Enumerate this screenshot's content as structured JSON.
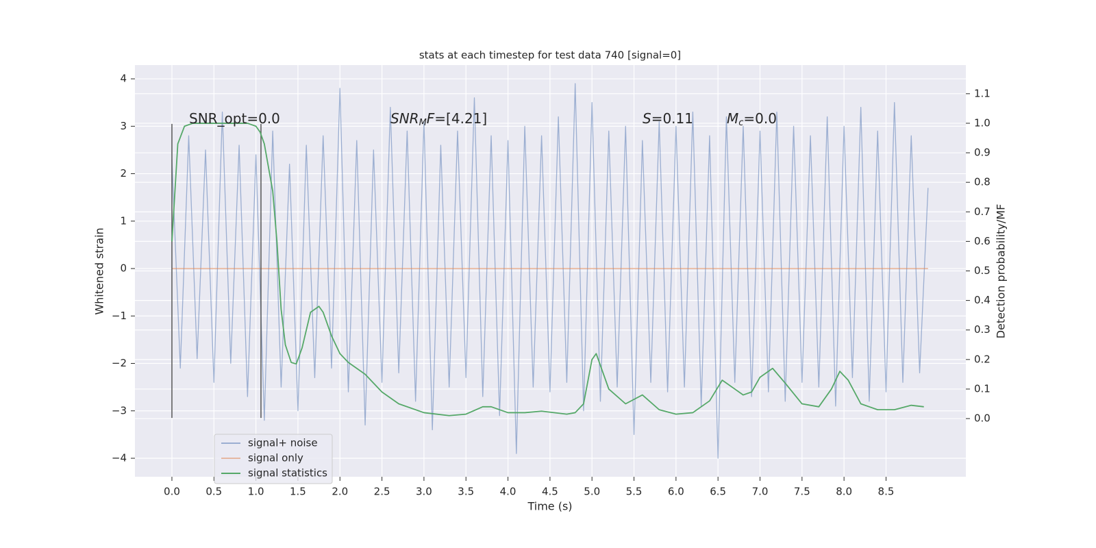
{
  "chart_data": {
    "type": "line",
    "title": "stats at each timestep for test data 740 [signal=0]",
    "xlabel": "Time (s)",
    "ylabel": "Whitened strain",
    "y2label": "Detection probability/MF",
    "xlim": [
      -0.44,
      9.45
    ],
    "ylim": [
      -4.39,
      4.29
    ],
    "y2lim": [
      -0.197,
      1.197
    ],
    "xticks": [
      {
        "value": 0,
        "label": "0.0"
      },
      {
        "value": 0.5,
        "label": "0.5"
      },
      {
        "value": 1,
        "label": "1.0"
      },
      {
        "value": 1.5,
        "label": "1.5"
      },
      {
        "value": 2,
        "label": "2.0"
      },
      {
        "value": 2.5,
        "label": "2.5"
      },
      {
        "value": 3,
        "label": "3.0"
      },
      {
        "value": 3.5,
        "label": "3.5"
      },
      {
        "value": 4,
        "label": "4.0"
      },
      {
        "value": 4.5,
        "label": "4.5"
      },
      {
        "value": 5,
        "label": "5.0"
      },
      {
        "value": 5.5,
        "label": "5.5"
      },
      {
        "value": 6,
        "label": "6.0"
      },
      {
        "value": 6.5,
        "label": "6.5"
      },
      {
        "value": 7,
        "label": "7.0"
      },
      {
        "value": 7.5,
        "label": "7.5"
      },
      {
        "value": 8,
        "label": "8.0"
      },
      {
        "value": 8.5,
        "label": "8.5"
      }
    ],
    "yticks": [
      {
        "value": -4,
        "label": "−4"
      },
      {
        "value": -3,
        "label": "−3"
      },
      {
        "value": -2,
        "label": "−2"
      },
      {
        "value": -1,
        "label": "−1"
      },
      0,
      1,
      2,
      3,
      4
    ],
    "y2ticks": [
      {
        "value": 0,
        "label": "0.0"
      },
      {
        "value": 0.1,
        "label": "0.1"
      },
      {
        "value": 0.2,
        "label": "0.2"
      },
      {
        "value": 0.3,
        "label": "0.3"
      },
      {
        "value": 0.4,
        "label": "0.4"
      },
      {
        "value": 0.5,
        "label": "0.5"
      },
      {
        "value": 0.6,
        "label": "0.6"
      },
      {
        "value": 0.7,
        "label": "0.7"
      },
      {
        "value": 0.8,
        "label": "0.8"
      },
      {
        "value": 0.9,
        "label": "0.9"
      },
      {
        "value": 1,
        "label": "1.0"
      },
      {
        "value": 1.1,
        "label": "1.1"
      }
    ],
    "grid": true,
    "legend": "lower left",
    "series": [
      {
        "name": "signal+ noise",
        "color": "#4c72b0",
        "opacity": 0.5,
        "x": [
          0,
          0.1,
          0.2,
          0.3,
          0.4,
          0.5,
          0.6,
          0.7,
          0.8,
          0.9,
          1,
          1.1,
          1.2,
          1.3,
          1.4,
          1.5,
          1.6,
          1.7,
          1.8,
          1.9,
          2,
          2.1,
          2.2,
          2.3,
          2.4,
          2.5,
          2.6,
          2.7,
          2.8,
          2.9,
          3,
          3.1,
          3.2,
          3.3,
          3.4,
          3.5,
          3.6,
          3.7,
          3.8,
          3.9,
          4,
          4.1,
          4.2,
          4.3,
          4.4,
          4.5,
          4.6,
          4.7,
          4.8,
          4.9,
          5,
          5.1,
          5.2,
          5.3,
          5.4,
          5.5,
          5.6,
          5.7,
          5.8,
          5.9,
          6,
          6.1,
          6.2,
          6.3,
          6.4,
          6.5,
          6.6,
          6.7,
          6.8,
          6.9,
          7,
          7.1,
          7.2,
          7.3,
          7.4,
          7.5,
          7.6,
          7.7,
          7.8,
          7.9,
          8,
          8.1,
          8.2,
          8.3,
          8.4,
          8.5,
          8.6,
          8.7,
          8.8,
          8.9,
          9
        ],
        "values": [
          2.3,
          -2.1,
          2.8,
          -1.9,
          2.5,
          -2.4,
          3.3,
          -2.0,
          2.6,
          -2.7,
          2.4,
          -3.2,
          2.9,
          -2.5,
          2.2,
          -3.0,
          2.6,
          -2.3,
          2.8,
          -2.1,
          3.8,
          -2.6,
          2.7,
          -3.3,
          2.5,
          -2.4,
          3.4,
          -2.2,
          2.9,
          -2.8,
          3.1,
          -3.4,
          2.6,
          -2.5,
          2.9,
          -2.3,
          3.6,
          -2.7,
          2.8,
          -3.1,
          2.7,
          -3.9,
          3.0,
          -2.5,
          2.8,
          -2.6,
          3.2,
          -2.4,
          3.9,
          -3.0,
          3.5,
          -2.8,
          2.9,
          -2.5,
          3.0,
          -3.5,
          2.7,
          -2.4,
          3.1,
          -2.6,
          3.0,
          -2.5,
          3.3,
          -2.9,
          2.8,
          -4.0,
          3.2,
          -2.4,
          3.0,
          -2.7,
          2.9,
          -2.6,
          3.3,
          -2.8,
          3.0,
          -2.4,
          2.8,
          -2.5,
          3.2,
          -2.9,
          3.0,
          -2.3,
          3.4,
          -2.8,
          2.9,
          -2.6,
          3.5,
          -2.4,
          2.8,
          -2.2,
          1.7
        ]
      },
      {
        "name": "signal only",
        "color": "#dd8452",
        "opacity": 0.5,
        "x": [
          0,
          9
        ],
        "values": [
          0,
          0
        ]
      },
      {
        "name": "signal statistics",
        "color": "#55a868",
        "opacity": 1,
        "axis": "y2",
        "x": [
          0,
          0.07,
          0.15,
          0.25,
          0.5,
          0.75,
          0.9,
          1,
          1.05,
          1.1,
          1.2,
          1.25,
          1.3,
          1.35,
          1.42,
          1.48,
          1.55,
          1.65,
          1.75,
          1.8,
          1.9,
          2,
          2.1,
          2.3,
          2.5,
          2.7,
          3,
          3.3,
          3.5,
          3.7,
          3.8,
          4,
          4.2,
          4.4,
          4.7,
          4.8,
          4.9,
          5,
          5.05,
          5.2,
          5.4,
          5.6,
          5.8,
          6,
          6.2,
          6.4,
          6.55,
          6.7,
          6.8,
          6.9,
          7,
          7.15,
          7.3,
          7.5,
          7.7,
          7.85,
          7.95,
          8.05,
          8.2,
          8.4,
          8.6,
          8.8,
          8.95
        ],
        "values": [
          0.6,
          0.93,
          0.99,
          1.0,
          1.0,
          1.0,
          1.0,
          0.99,
          0.97,
          0.93,
          0.77,
          0.6,
          0.37,
          0.25,
          0.19,
          0.185,
          0.24,
          0.36,
          0.38,
          0.36,
          0.28,
          0.22,
          0.19,
          0.15,
          0.09,
          0.05,
          0.02,
          0.01,
          0.015,
          0.04,
          0.04,
          0.02,
          0.02,
          0.025,
          0.015,
          0.02,
          0.05,
          0.2,
          0.22,
          0.1,
          0.05,
          0.08,
          0.03,
          0.015,
          0.02,
          0.06,
          0.13,
          0.1,
          0.08,
          0.09,
          0.14,
          0.17,
          0.12,
          0.05,
          0.04,
          0.1,
          0.16,
          0.13,
          0.05,
          0.03,
          0.03,
          0.045,
          0.04
        ]
      }
    ],
    "vlines": {
      "x": [
        0,
        1.06
      ],
      "ymin": -3.15,
      "ymax": 3.05,
      "color": "#555555"
    },
    "annotations": [
      [
        "SNR_opt=0.0"
      ],
      [
        "SNR",
        "M",
        "F",
        "=[4.21]"
      ],
      [
        "S",
        "=0.11"
      ],
      [
        "M",
        "c",
        "=0.0"
      ]
    ]
  }
}
